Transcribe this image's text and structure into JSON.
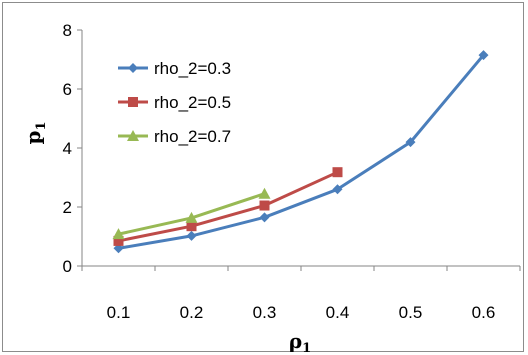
{
  "chart_data": {
    "type": "line",
    "categories": [
      "0.1",
      "0.2",
      "0.3",
      "0.4",
      "0.5",
      "0.6"
    ],
    "series": [
      {
        "name": "rho_2=0.3",
        "color": "#4a7ebb",
        "marker": "diamond",
        "values": [
          0.6,
          1.02,
          1.65,
          2.6,
          4.2,
          7.15
        ]
      },
      {
        "name": "rho_2=0.5",
        "color": "#be4b48",
        "marker": "square",
        "values": [
          0.85,
          1.35,
          2.05,
          3.18,
          null,
          null
        ]
      },
      {
        "name": "rho_2=0.7",
        "color": "#98b954",
        "marker": "triangle",
        "values": [
          1.08,
          1.63,
          2.45,
          null,
          null,
          null
        ]
      }
    ],
    "yticks": [
      "0",
      "2",
      "4",
      "6",
      "8"
    ],
    "ylim": [
      0,
      8
    ],
    "xlabel_main": "ρ",
    "xlabel_sub": "1",
    "ylabel_main": "p",
    "ylabel_sub": "1",
    "legend_position": "top-left",
    "grid": false
  }
}
